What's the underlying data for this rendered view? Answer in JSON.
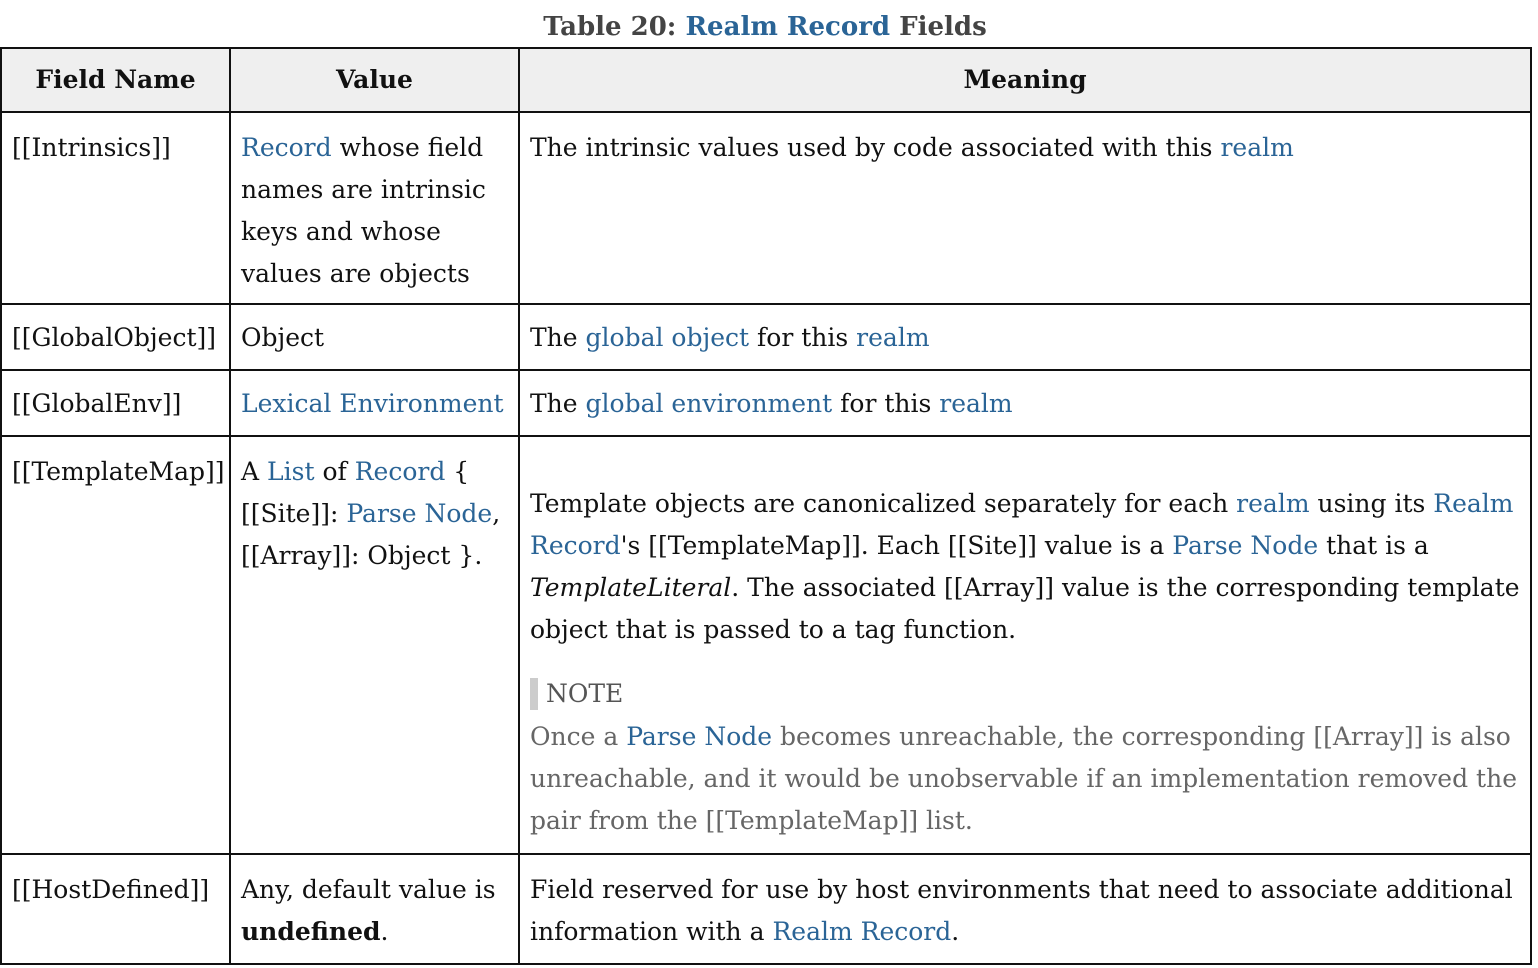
{
  "caption": {
    "prefix": "Table 20: ",
    "link": "Realm Record",
    "suffix": " Fields"
  },
  "headers": {
    "field_name": "Field Name",
    "value": "Value",
    "meaning": "Meaning"
  },
  "rows": {
    "intrinsics": {
      "field": "[[Intrinsics]]",
      "value_link": "Record",
      "value_rest": " whose field names are intrinsic keys and whose values are objects",
      "meaning_text": "The intrinsic values used by code associated with this ",
      "meaning_link": "realm"
    },
    "global_object": {
      "field": "[[GlobalObject]]",
      "value": "Object",
      "meaning_pre": "The ",
      "meaning_link1": "global object",
      "meaning_mid": " for this ",
      "meaning_link2": "realm"
    },
    "global_env": {
      "field": "[[GlobalEnv]]",
      "value_link": "Lexical Environment",
      "meaning_pre": "The ",
      "meaning_link1": "global environment",
      "meaning_mid": " for this ",
      "meaning_link2": "realm"
    },
    "template_map": {
      "field": "[[TemplateMap]]",
      "value_a": "A ",
      "value_link1": "List",
      "value_of": " of ",
      "value_link2": "Record",
      "value_brace": " { [[Site]]: ",
      "value_link3": "Parse Node",
      "value_end": ", [[Array]]: Object }.",
      "meaning_t1": "Template objects are canonicalized separately for each ",
      "meaning_l1": "realm",
      "meaning_t2": " using its ",
      "meaning_l2": "Realm Record",
      "meaning_t3": "'s [[TemplateMap]]. Each [[Site]] value is a ",
      "meaning_l3": "Parse Node",
      "meaning_t4": " that is a ",
      "meaning_i1": "TemplateLiteral",
      "meaning_t5": ". The associated [[Array]] value is the corresponding template object that is passed to a tag function.",
      "note_label": "NOTE",
      "note_t1": "Once a ",
      "note_l1": "Parse Node",
      "note_t2": " becomes unreachable, the corresponding [[Array]] is also unreachable, and it would be unobservable if an implementation removed the pair from the [[TemplateMap]] list."
    },
    "host_defined": {
      "field": "[[HostDefined]]",
      "value_pre": "Any, default value is ",
      "value_bold": "undefined",
      "value_end": ".",
      "meaning_text": "Field reserved for use by host environments that need to associate additional information with a ",
      "meaning_link": "Realm Record",
      "meaning_end": "."
    }
  },
  "colors": {
    "link": "#2a6496",
    "header_bg": "#efefef",
    "note_text": "#666666"
  }
}
